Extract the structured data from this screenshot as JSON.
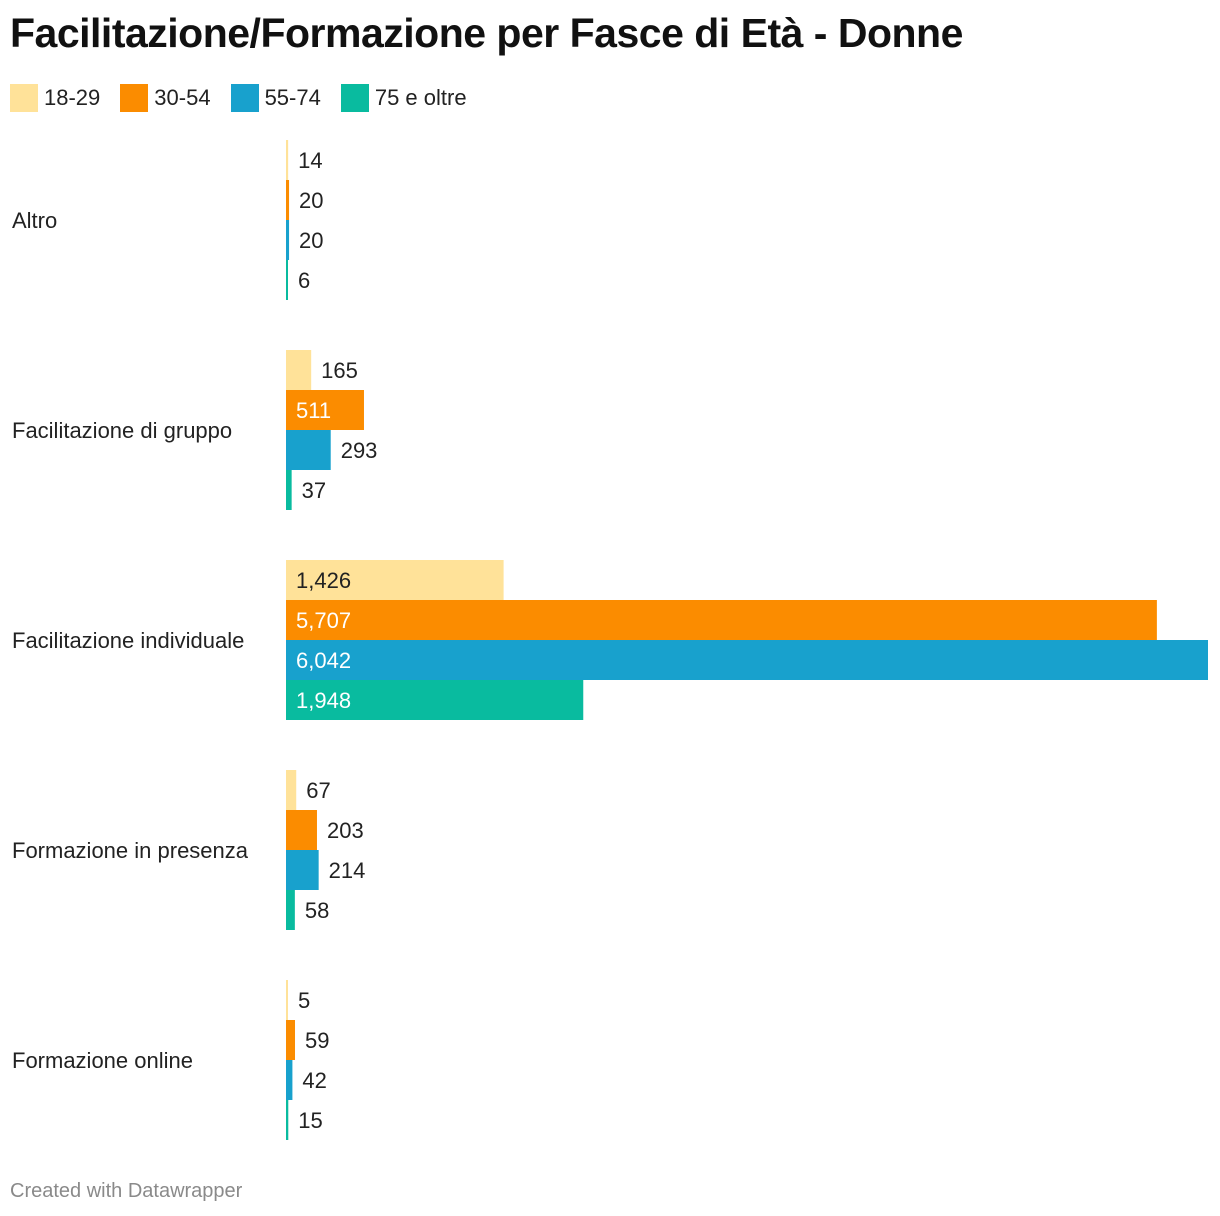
{
  "chart_data": {
    "type": "bar",
    "orientation": "horizontal-grouped",
    "title": "Facilitazione/Formazione per Fasce di Età - Donne",
    "categories": [
      "Altro",
      "Facilitazione di gruppo",
      "Facilitazione individuale",
      "Formazione in presenza",
      "Formazione online"
    ],
    "series": [
      {
        "name": "18-29",
        "color": "#FFE299",
        "values": [
          14,
          165,
          1426,
          67,
          5
        ],
        "labels": [
          "14",
          "165",
          "1,426",
          "67",
          "5"
        ]
      },
      {
        "name": "30-54",
        "color": "#FB8C00",
        "values": [
          20,
          511,
          5707,
          203,
          59
        ],
        "labels": [
          "20",
          "511",
          "5,707",
          "203",
          "59"
        ]
      },
      {
        "name": "55-74",
        "color": "#18A1CD",
        "values": [
          20,
          293,
          6042,
          214,
          42
        ],
        "labels": [
          "20",
          "293",
          "6,042",
          "214",
          "42"
        ]
      },
      {
        "name": "75 e oltre",
        "color": "#09BB9F",
        "values": [
          6,
          37,
          1948,
          58,
          15
        ],
        "labels": [
          "6",
          "37",
          "1,948",
          "58",
          "15"
        ]
      }
    ],
    "xlim": [
      0,
      6042
    ],
    "legend": "top-left",
    "grid": false
  },
  "footer": "Created with Datawrapper"
}
